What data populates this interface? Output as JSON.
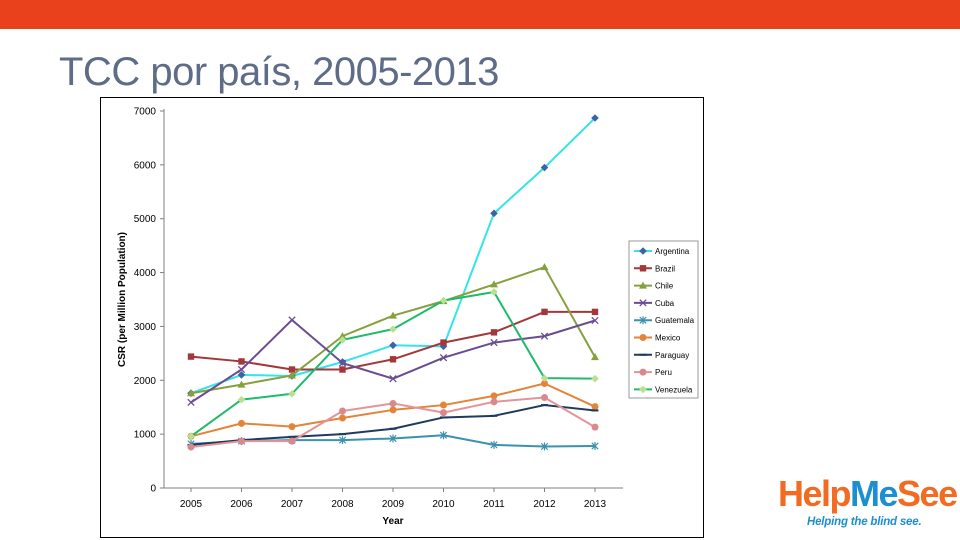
{
  "slide": {
    "title": "TCC por país, 2005-2013",
    "accent_color": "#e8411c",
    "title_color": "#5f6c87"
  },
  "logo": {
    "parts": [
      "Help",
      "Me",
      "See"
    ],
    "colors": [
      "#f26b21",
      "#1c8fd1",
      "#f26b21"
    ],
    "tagline": "Helping the blind see.",
    "tagline_color": "#1c8fd1"
  },
  "chart_data": {
    "type": "line",
    "xlabel": "Year",
    "ylabel": "CSR (per Million Population)",
    "categories": [
      "2005",
      "2006",
      "2007",
      "2008",
      "2009",
      "2010",
      "2011",
      "2012",
      "2013"
    ],
    "ylim": [
      0,
      7000
    ],
    "yticks": [
      "0",
      "1000",
      "2000",
      "3000",
      "4000",
      "5000",
      "6000",
      "7000"
    ],
    "grid": false,
    "legend_position": "right",
    "series": [
      {
        "name": "Argentina",
        "color": "#33e4e8",
        "marker": "diamond",
        "marker_color": "#3a64a8",
        "values": [
          1760,
          2100,
          2080,
          2340,
          2650,
          2630,
          5100,
          5950,
          6870
        ]
      },
      {
        "name": "Brazil",
        "color": "#a4373a",
        "marker": "square",
        "marker_color": "#a4373a",
        "values": [
          2440,
          2350,
          2200,
          2200,
          2390,
          2700,
          2890,
          3270,
          3270
        ]
      },
      {
        "name": "Chile",
        "color": "#86a03f",
        "marker": "triangle",
        "marker_color": "#86a03f",
        "values": [
          1760,
          1920,
          2090,
          2820,
          3200,
          3470,
          3780,
          4100,
          2430
        ]
      },
      {
        "name": "Cuba",
        "color": "#6a4c93",
        "marker": "x",
        "marker_color": "#6a4c93",
        "values": [
          1590,
          2200,
          3120,
          2320,
          2030,
          2420,
          2700,
          2820,
          3110
        ]
      },
      {
        "name": "Guatemala",
        "color": "#3b92ad",
        "marker": "star",
        "marker_color": "#3b92ad",
        "values": [
          820,
          870,
          890,
          890,
          920,
          980,
          800,
          770,
          780
        ]
      },
      {
        "name": "Mexico",
        "color": "#e2843a",
        "marker": "circle",
        "marker_color": "#e2843a",
        "values": [
          960,
          1200,
          1140,
          1300,
          1450,
          1540,
          1710,
          1940,
          1510
        ]
      },
      {
        "name": "Paraguay",
        "color": "#1f3a5f",
        "marker": "dash",
        "marker_color": "#1f3a5f",
        "values": [
          800,
          890,
          950,
          1000,
          1100,
          1310,
          1340,
          1540,
          1440
        ]
      },
      {
        "name": "Peru",
        "color": "#e49499",
        "marker": "circle",
        "marker_color": "#d9888d",
        "values": [
          760,
          870,
          870,
          1430,
          1570,
          1400,
          1600,
          1680,
          1130
        ]
      },
      {
        "name": "Venezuela",
        "color": "#1fba6b",
        "marker": "diamond",
        "marker_color": "#b7e08f",
        "values": [
          960,
          1640,
          1750,
          2750,
          2950,
          3480,
          3640,
          2040,
          2030
        ]
      }
    ]
  }
}
